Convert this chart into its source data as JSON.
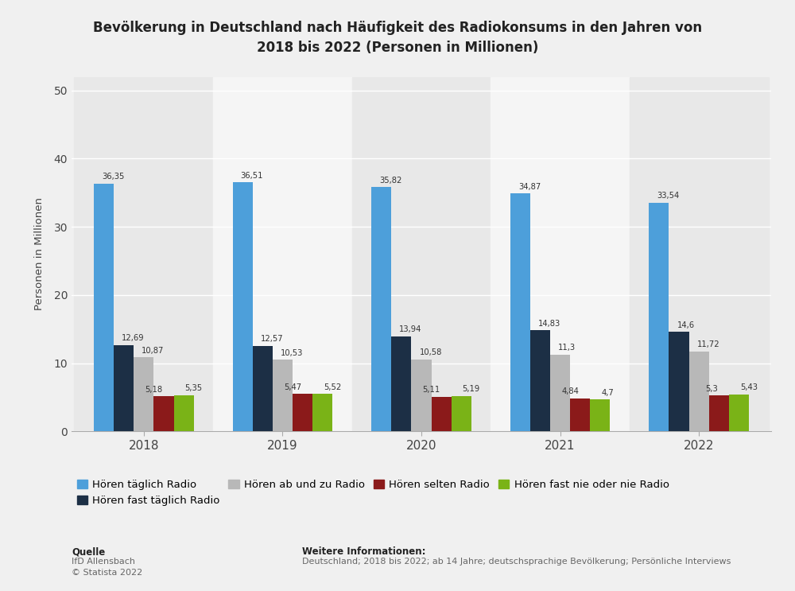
{
  "title": "Bevölkerung in Deutschland nach Häufigkeit des Radiokonsums in den Jahren von\n2018 bis 2022 (Personen in Millionen)",
  "ylabel": "Personen in Millionen",
  "years": [
    "2018",
    "2019",
    "2020",
    "2021",
    "2022"
  ],
  "categories": [
    "Hören täglich Radio",
    "Hören fast täglich Radio",
    "Hören ab und zu Radio",
    "Hören selten Radio",
    "Hören fast nie oder nie Radio"
  ],
  "values": {
    "täglich": [
      36.35,
      36.51,
      35.82,
      34.87,
      33.54
    ],
    "fast_täglich": [
      12.69,
      12.57,
      13.94,
      14.83,
      14.6
    ],
    "ab_und_zu": [
      10.87,
      10.53,
      10.58,
      11.3,
      11.72
    ],
    "selten": [
      5.18,
      5.475,
      5.115,
      4.84,
      5.3
    ],
    "fast_nie": [
      5.35,
      5.52,
      5.19,
      4.7,
      5.43
    ]
  },
  "labels": {
    "täglich": [
      "36,35",
      "36,51",
      "35,82",
      "34,87",
      "33,54"
    ],
    "fast_täglich": [
      "12,69",
      "12,57",
      "13,94",
      "14,83",
      "14,6"
    ],
    "ab_und_zu": [
      "10,87",
      "10,53",
      "10,58",
      "11,3",
      "11,72"
    ],
    "selten": [
      "5,185,35",
      "5,475,52",
      "5,115,19",
      "4,84",
      "5,3"
    ],
    "fast_nie": [
      "5,35",
      "5,52",
      "5,19",
      "4,7",
      "5,43"
    ]
  },
  "selten_labels_split": {
    "2018": [
      "5,18",
      "5,35"
    ],
    "2019": [
      "5,47",
      "5,52"
    ],
    "2020": [
      "5,11",
      "5,19"
    ],
    "2021": [
      "4,84",
      "4,7"
    ],
    "2022": [
      "5,3",
      "5,43"
    ]
  },
  "colors": {
    "täglich": "#4d9fda",
    "fast_täglich": "#1c2f45",
    "ab_und_zu": "#b8b8b8",
    "selten": "#8b1a1a",
    "fast_nie": "#7ab317"
  },
  "col_bg_odd": "#e8e8e8",
  "col_bg_even": "#f5f5f5",
  "ylim": [
    0,
    52
  ],
  "yticks": [
    0,
    10,
    20,
    30,
    40,
    50
  ],
  "background_color": "#f0f0f0",
  "grid_color": "#ffffff",
  "footer_source_label": "Quelle",
  "footer_source": "IfD Allensbach\n© Statista 2022",
  "footer_info_label": "Weitere Informationen:",
  "footer_info": "Deutschland; 2018 bis 2022; ab 14 Jahre; deutschsprachige Bevölkerung; Persönliche Interviews"
}
